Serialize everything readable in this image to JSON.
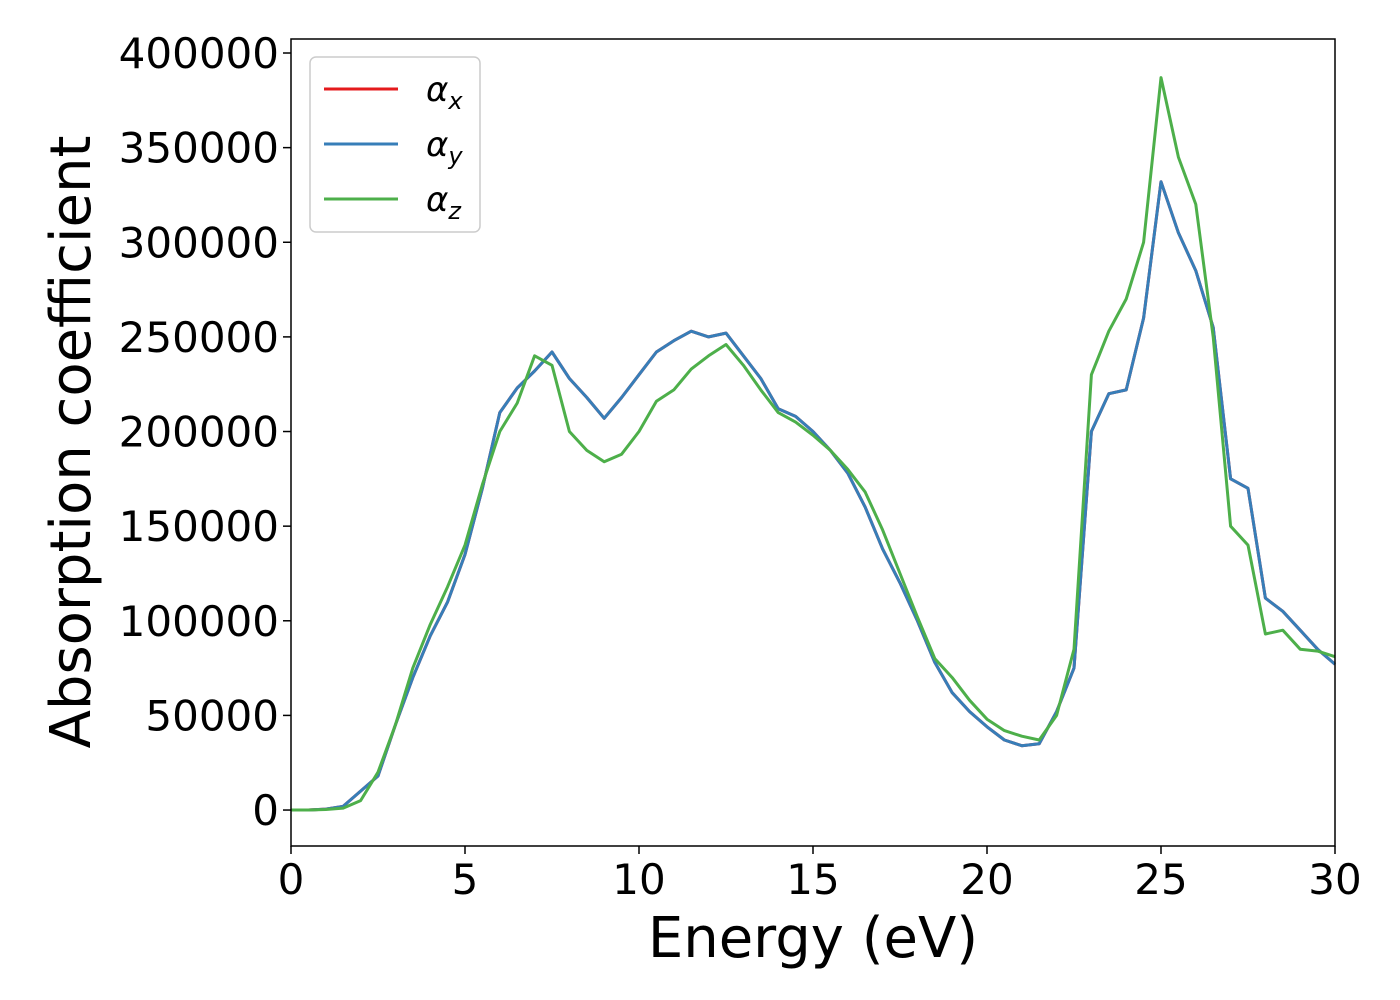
{
  "chart_data": {
    "type": "line",
    "xlabel": "Energy (eV)",
    "ylabel": "Absorption coefficient",
    "xlim": [
      0,
      30
    ],
    "ylim": [
      -19000,
      407400
    ],
    "xticks": [
      0,
      5,
      10,
      15,
      20,
      25,
      30
    ],
    "yticks": [
      0,
      50000,
      100000,
      150000,
      200000,
      250000,
      300000,
      350000,
      400000
    ],
    "legend": "upper left",
    "x": [
      0,
      0.5,
      1,
      1.5,
      2,
      2.5,
      3,
      3.5,
      4,
      4.5,
      5,
      5.5,
      6,
      6.5,
      7,
      7.5,
      8,
      8.5,
      9,
      9.5,
      10,
      10.5,
      11,
      11.5,
      12,
      12.5,
      13,
      13.5,
      14,
      14.5,
      15,
      15.5,
      16,
      16.5,
      17,
      17.5,
      18,
      18.5,
      19,
      19.5,
      20,
      20.5,
      21,
      21.5,
      22,
      22.5,
      23,
      23.5,
      24,
      24.5,
      25,
      25.5,
      26,
      26.5,
      27,
      27.5,
      28,
      28.5,
      29,
      29.5,
      30
    ],
    "series": [
      {
        "name": "αx",
        "color": "#e41a1c",
        "values": [
          0,
          0,
          500,
          2000,
          10000,
          18000,
          45000,
          70000,
          92000,
          110000,
          135000,
          170000,
          210000,
          223000,
          232000,
          242000,
          228000,
          218000,
          207000,
          218000,
          230000,
          242000,
          248000,
          253000,
          250000,
          252000,
          240000,
          228000,
          212000,
          208000,
          200000,
          190000,
          178000,
          160000,
          138000,
          120000,
          100000,
          78000,
          62000,
          52000,
          44000,
          37000,
          34000,
          35000,
          52000,
          75000,
          200000,
          220000,
          222000,
          260000,
          332000,
          305000,
          285000,
          255000,
          175000,
          170000,
          112000,
          105000,
          95000,
          85000,
          77000
        ]
      },
      {
        "name": "αy",
        "color": "#377eb8",
        "values": [
          0,
          0,
          500,
          2000,
          10000,
          18000,
          45000,
          70000,
          92000,
          110000,
          135000,
          170000,
          210000,
          223000,
          232000,
          242000,
          228000,
          218000,
          207000,
          218000,
          230000,
          242000,
          248000,
          253000,
          250000,
          252000,
          240000,
          228000,
          212000,
          208000,
          200000,
          190000,
          178000,
          160000,
          138000,
          120000,
          100000,
          78000,
          62000,
          52000,
          44000,
          37000,
          34000,
          35000,
          52000,
          75000,
          200000,
          220000,
          222000,
          260000,
          332000,
          305000,
          285000,
          255000,
          175000,
          170000,
          112000,
          105000,
          95000,
          85000,
          77000
        ]
      },
      {
        "name": "αz",
        "color": "#4daf4a",
        "values": [
          0,
          0,
          300,
          1000,
          5000,
          20000,
          45000,
          75000,
          98000,
          118000,
          140000,
          172000,
          200000,
          215000,
          240000,
          235000,
          200000,
          190000,
          184000,
          188000,
          200000,
          216000,
          222000,
          233000,
          240000,
          246000,
          235000,
          222000,
          210000,
          205000,
          198000,
          190000,
          180000,
          168000,
          148000,
          125000,
          102000,
          80000,
          70000,
          58000,
          48000,
          42000,
          39000,
          37000,
          50000,
          85000,
          230000,
          253000,
          270000,
          300000,
          387000,
          345000,
          320000,
          250000,
          150000,
          140000,
          93000,
          95000,
          85000,
          84000,
          81000
        ]
      }
    ]
  }
}
